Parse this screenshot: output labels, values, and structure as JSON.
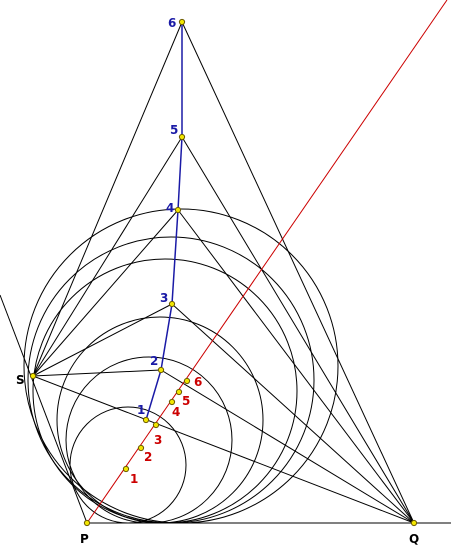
{
  "vertex_labels": {
    "S": "S",
    "P": "P",
    "Q": "Q"
  },
  "blue_labels": [
    "1",
    "2",
    "3",
    "4",
    "5",
    "6"
  ],
  "red_labels": [
    "1",
    "2",
    "3",
    "4",
    "5",
    "6"
  ],
  "colors": {
    "lines": "#000000",
    "blue_path": "#1a1aa6",
    "red_line": "#cc0000",
    "points": "#f2e600"
  }
}
